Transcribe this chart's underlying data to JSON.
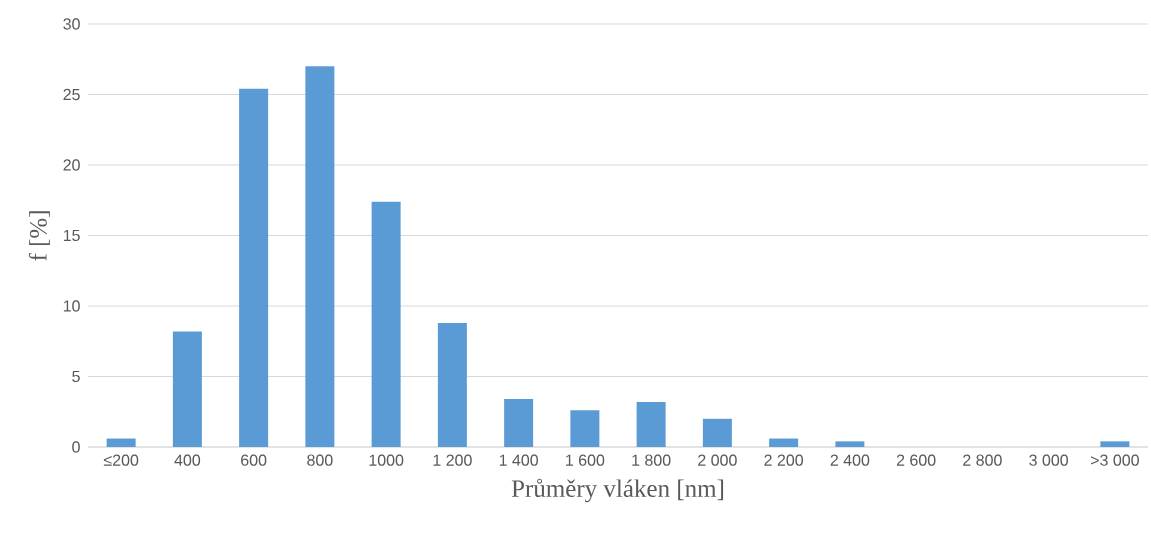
{
  "chart_data": {
    "type": "bar",
    "xlabel": "Průměry vláken [nm]",
    "ylabel": "f [%]",
    "categories": [
      "≤200",
      "400",
      "600",
      "800",
      "1000",
      "1 200",
      "1 400",
      "1 600",
      "1 800",
      "2 000",
      "2 200",
      "2 400",
      "2 600",
      "2 800",
      "3 000",
      ">3 000"
    ],
    "values": [
      0.6,
      8.2,
      25.4,
      27.0,
      17.4,
      8.8,
      3.4,
      2.6,
      3.2,
      2.0,
      0.6,
      0.4,
      0,
      0,
      0,
      0.4
    ],
    "color": "#5b9bd5",
    "ylim": [
      0,
      30
    ],
    "yticks": [
      0,
      5,
      10,
      15,
      20,
      25,
      30
    ],
    "grid": "y"
  }
}
